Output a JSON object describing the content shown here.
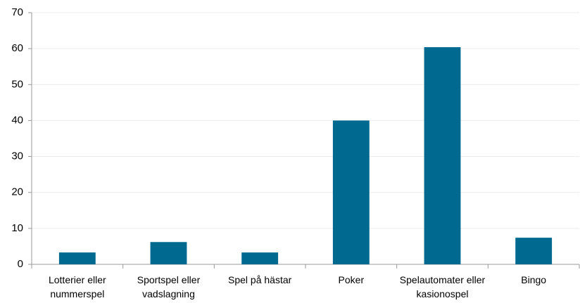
{
  "chart_data": {
    "type": "bar",
    "categories": [
      "Lotterier eller nummerspel",
      "Sportspel eller vadslagning",
      "Spel på hästar",
      "Poker",
      "Spelautomater eller kasionospel",
      "Bingo"
    ],
    "values": [
      3.3,
      6.2,
      3.3,
      40,
      60.4,
      7.4
    ],
    "color": "#00698f",
    "ylim": [
      0,
      70
    ],
    "yticks": [
      0,
      10,
      20,
      30,
      40,
      50,
      60,
      70
    ],
    "grid": true
  }
}
